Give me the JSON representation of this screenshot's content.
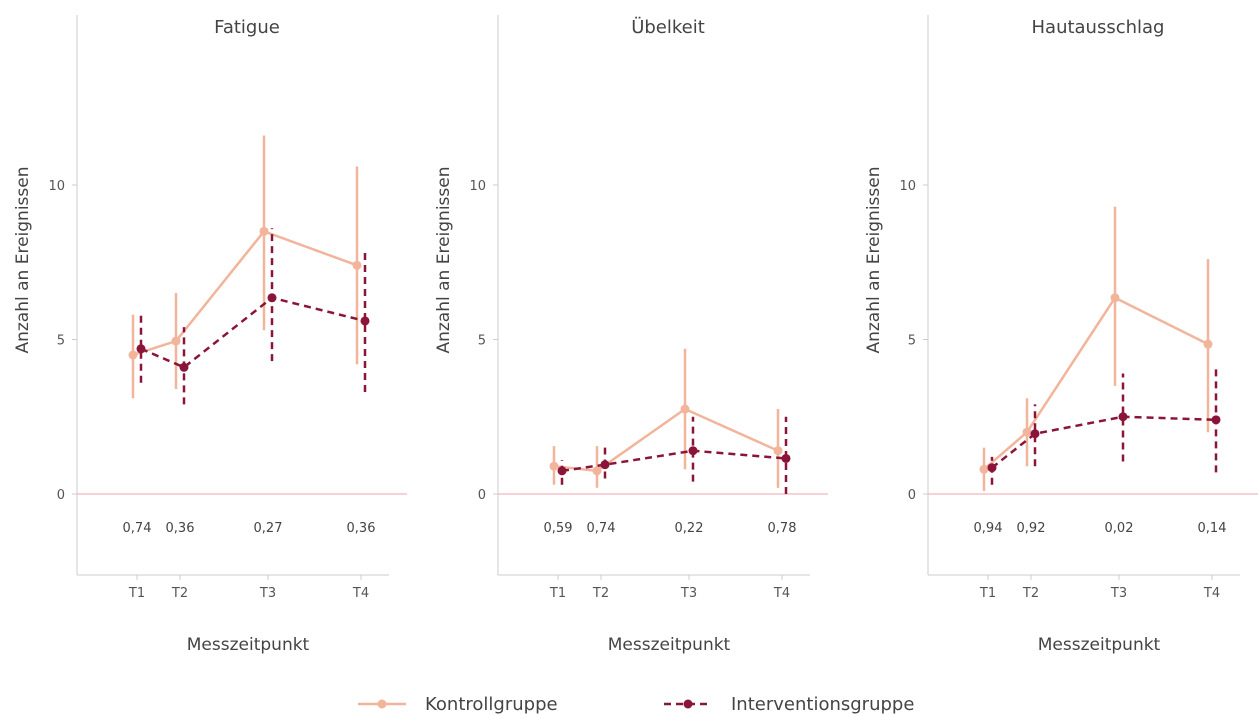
{
  "chart_data": [
    {
      "type": "line",
      "title": "Fatigue",
      "xlabel": "Messzeitpunkt",
      "ylabel": "Anzahl an Ereignissen",
      "x": [
        1,
        2,
        4,
        6
      ],
      "x_tick_labels": [
        "T1",
        "T2",
        "T3",
        "T4"
      ],
      "y_ticks": [
        0,
        5,
        10
      ],
      "ylim": [
        -2.6,
        15.5
      ],
      "annotations": [
        "0,74",
        "0,36",
        "0,27",
        "0,36"
      ],
      "series": [
        {
          "name": "Kontrollgruppe",
          "values": [
            4.5,
            4.95,
            8.5,
            7.4
          ],
          "lower": [
            3.1,
            3.4,
            5.3,
            4.2
          ],
          "upper": [
            5.8,
            6.5,
            11.6,
            10.6
          ]
        },
        {
          "name": "Interventionsgruppe",
          "values": [
            4.7,
            4.1,
            6.35,
            5.6
          ],
          "lower": [
            3.6,
            2.9,
            4.3,
            3.3
          ],
          "upper": [
            5.8,
            5.4,
            8.6,
            7.9
          ]
        }
      ]
    },
    {
      "type": "line",
      "title": "Übelkeit",
      "xlabel": "Messzeitpunkt",
      "ylabel": "Anzahl an Ereignissen",
      "x": [
        1,
        2,
        4,
        6
      ],
      "x_tick_labels": [
        "T1",
        "T2",
        "T3",
        "T4"
      ],
      "y_ticks": [
        0,
        5,
        10
      ],
      "ylim": [
        -2.6,
        15.5
      ],
      "annotations": [
        "0,59",
        "0,74",
        "0,22",
        "0,78"
      ],
      "series": [
        {
          "name": "Kontrollgruppe",
          "values": [
            0.9,
            0.75,
            2.75,
            1.4
          ],
          "lower": [
            0.3,
            0.2,
            0.8,
            0.2
          ],
          "upper": [
            1.55,
            1.55,
            4.7,
            2.75
          ]
        },
        {
          "name": "Interventionsgruppe",
          "values": [
            0.75,
            0.95,
            1.4,
            1.15
          ],
          "lower": [
            0.3,
            0.5,
            0.4,
            0.0
          ],
          "upper": [
            1.1,
            1.5,
            2.5,
            2.5
          ]
        }
      ]
    },
    {
      "type": "line",
      "title": "Hautausschlag",
      "xlabel": "Messzeitpunkt",
      "ylabel": "Anzahl an Ereignissen",
      "x": [
        1,
        2,
        4,
        6
      ],
      "x_tick_labels": [
        "T1",
        "T2",
        "T3",
        "T4"
      ],
      "y_ticks": [
        0,
        5,
        10
      ],
      "ylim": [
        -2.6,
        15.5
      ],
      "annotations": [
        "0,94",
        "0,92",
        "0,02",
        "0,14"
      ],
      "series": [
        {
          "name": "Kontrollgruppe",
          "values": [
            0.8,
            2.0,
            6.35,
            4.85
          ],
          "lower": [
            0.1,
            0.9,
            3.5,
            2.0
          ],
          "upper": [
            1.5,
            3.1,
            9.3,
            7.6
          ]
        },
        {
          "name": "Interventionsgruppe",
          "values": [
            0.85,
            1.95,
            2.5,
            2.4
          ],
          "lower": [
            0.3,
            0.9,
            1.05,
            0.7
          ],
          "upper": [
            1.2,
            2.9,
            3.9,
            4.1
          ]
        }
      ]
    }
  ],
  "legend": {
    "position": "bottom",
    "items": [
      {
        "name": "Kontrollgruppe",
        "color": "#f2b49a",
        "dash": "solid"
      },
      {
        "name": "Interventionsgruppe",
        "color": "#8b1538",
        "dash": "dashed"
      }
    ]
  },
  "colors": {
    "kontroll": "#f2b49a",
    "intervention": "#8b1538",
    "zero_line": "#f0b8c0",
    "axis": "#cccccc"
  }
}
